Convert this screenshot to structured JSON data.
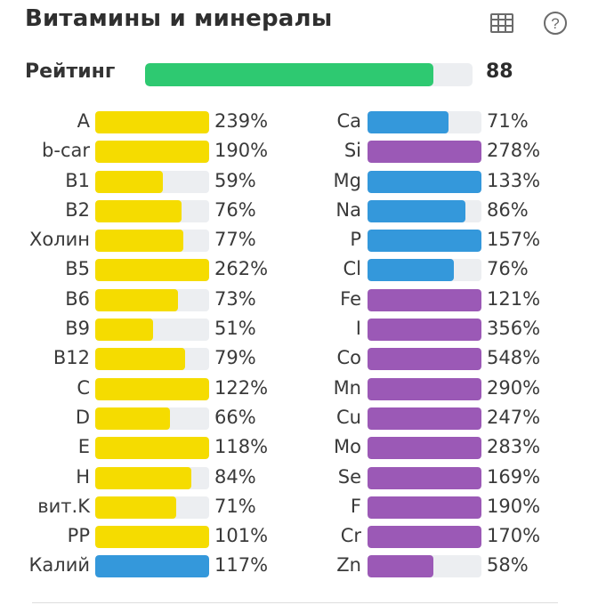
{
  "header": {
    "title": "Витамины и минералы",
    "table_icon": "table-icon",
    "help_icon": "help-icon"
  },
  "rating": {
    "label": "Рейтинг",
    "value": "88",
    "fraction": 0.88,
    "color": "#2ec971"
  },
  "colors": {
    "yellow": "#f5dc00",
    "blue": "#3498db",
    "purple": "#9b59b6",
    "track": "#eceef1"
  },
  "left": [
    {
      "label": "A",
      "pct": "239%",
      "value": 239,
      "color": "yellow"
    },
    {
      "label": "b-car",
      "pct": "190%",
      "value": 190,
      "color": "yellow"
    },
    {
      "label": "B1",
      "pct": "59%",
      "value": 59,
      "color": "yellow"
    },
    {
      "label": "B2",
      "pct": "76%",
      "value": 76,
      "color": "yellow"
    },
    {
      "label": "Холин",
      "pct": "77%",
      "value": 77,
      "color": "yellow"
    },
    {
      "label": "B5",
      "pct": "262%",
      "value": 262,
      "color": "yellow"
    },
    {
      "label": "B6",
      "pct": "73%",
      "value": 73,
      "color": "yellow"
    },
    {
      "label": "B9",
      "pct": "51%",
      "value": 51,
      "color": "yellow"
    },
    {
      "label": "B12",
      "pct": "79%",
      "value": 79,
      "color": "yellow"
    },
    {
      "label": "C",
      "pct": "122%",
      "value": 122,
      "color": "yellow"
    },
    {
      "label": "D",
      "pct": "66%",
      "value": 66,
      "color": "yellow"
    },
    {
      "label": "E",
      "pct": "118%",
      "value": 118,
      "color": "yellow"
    },
    {
      "label": "H",
      "pct": "84%",
      "value": 84,
      "color": "yellow"
    },
    {
      "label": "вит.K",
      "pct": "71%",
      "value": 71,
      "color": "yellow"
    },
    {
      "label": "PP",
      "pct": "101%",
      "value": 101,
      "color": "yellow"
    },
    {
      "label": "Калий",
      "pct": "117%",
      "value": 117,
      "color": "blue"
    }
  ],
  "right": [
    {
      "label": "Ca",
      "pct": "71%",
      "value": 71,
      "color": "blue"
    },
    {
      "label": "Si",
      "pct": "278%",
      "value": 278,
      "color": "purple"
    },
    {
      "label": "Mg",
      "pct": "133%",
      "value": 133,
      "color": "blue"
    },
    {
      "label": "Na",
      "pct": "86%",
      "value": 86,
      "color": "blue"
    },
    {
      "label": "P",
      "pct": "157%",
      "value": 157,
      "color": "blue"
    },
    {
      "label": "Cl",
      "pct": "76%",
      "value": 76,
      "color": "blue"
    },
    {
      "label": "Fe",
      "pct": "121%",
      "value": 121,
      "color": "purple"
    },
    {
      "label": "I",
      "pct": "356%",
      "value": 356,
      "color": "purple"
    },
    {
      "label": "Co",
      "pct": "548%",
      "value": 548,
      "color": "purple"
    },
    {
      "label": "Mn",
      "pct": "290%",
      "value": 290,
      "color": "purple"
    },
    {
      "label": "Cu",
      "pct": "247%",
      "value": 247,
      "color": "purple"
    },
    {
      "label": "Mo",
      "pct": "283%",
      "value": 283,
      "color": "purple"
    },
    {
      "label": "Se",
      "pct": "169%",
      "value": 169,
      "color": "purple"
    },
    {
      "label": "F",
      "pct": "190%",
      "value": 190,
      "color": "purple"
    },
    {
      "label": "Cr",
      "pct": "170%",
      "value": 170,
      "color": "purple"
    },
    {
      "label": "Zn",
      "pct": "58%",
      "value": 58,
      "color": "purple"
    }
  ]
}
